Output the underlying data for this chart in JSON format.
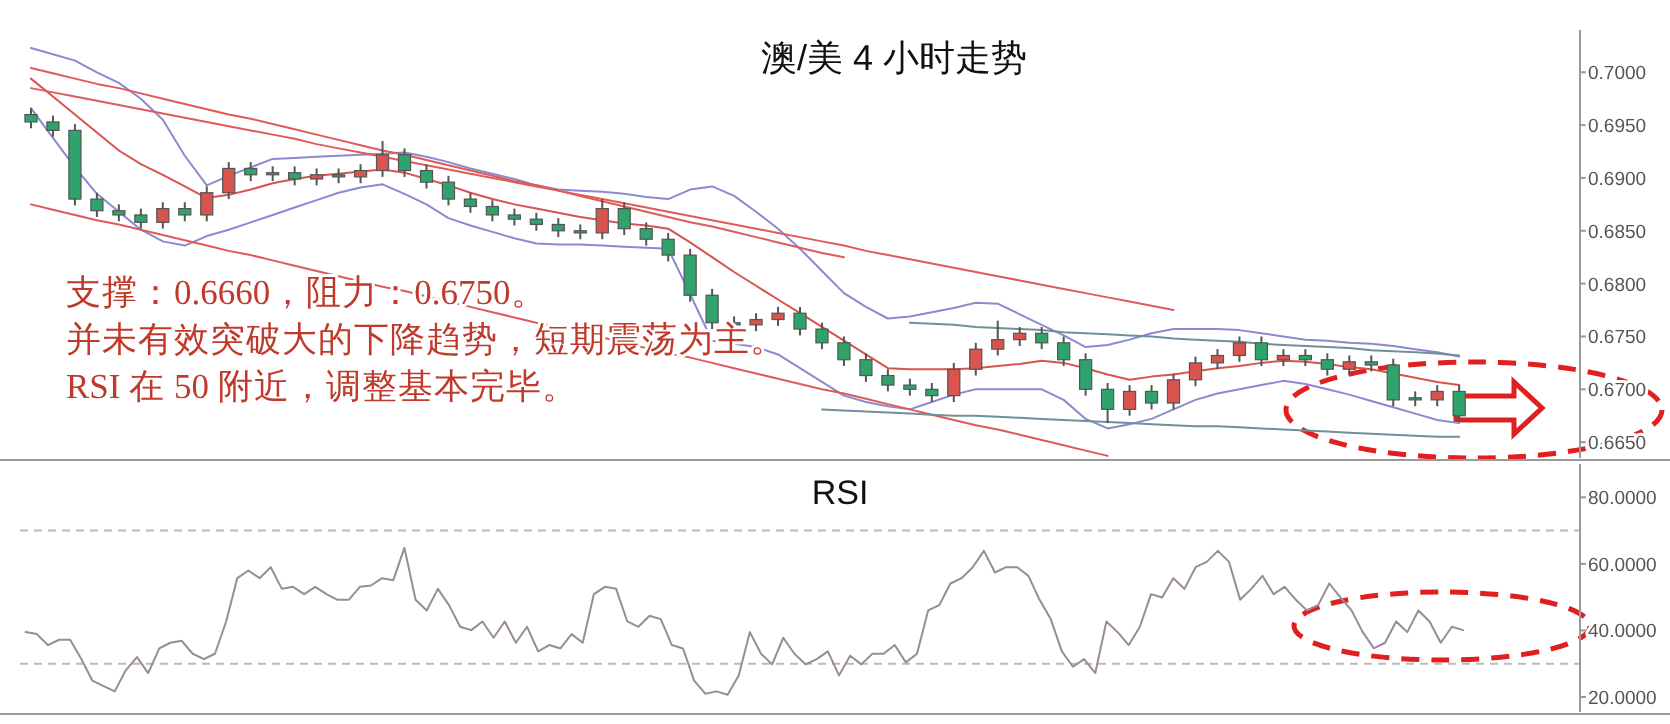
{
  "chart_data": [
    {
      "type": "candlestick",
      "title": "澳/美 4 小时走势",
      "categories": [
        null,
        null,
        null,
        null,
        null,
        null,
        null,
        null,
        null,
        null,
        null,
        null,
        null,
        null,
        null,
        null,
        null,
        null,
        null,
        null,
        null,
        null,
        null,
        null,
        null,
        null,
        null,
        null,
        null,
        null,
        null,
        null,
        null,
        null,
        null,
        null,
        null,
        null,
        null,
        null,
        null,
        null,
        null,
        null,
        null,
        null,
        null,
        null,
        null,
        null,
        null,
        null,
        null,
        null,
        null,
        null,
        null,
        null,
        null,
        null,
        null,
        null,
        null,
        null,
        null,
        null
      ],
      "ohlc": [
        [
          0.696,
          0.6966,
          0.6947,
          0.6953
        ],
        [
          0.6953,
          0.6959,
          0.6939,
          0.6945
        ],
        [
          0.6945,
          0.6951,
          0.6874,
          0.688
        ],
        [
          0.688,
          0.6886,
          0.6863,
          0.6869
        ],
        [
          0.6869,
          0.6875,
          0.6859,
          0.6865
        ],
        [
          0.6865,
          0.6871,
          0.6852,
          0.6858
        ],
        [
          0.6858,
          0.6877,
          0.6852,
          0.6871
        ],
        [
          0.6871,
          0.6877,
          0.6859,
          0.6865
        ],
        [
          0.6865,
          0.6892,
          0.6859,
          0.6886
        ],
        [
          0.6886,
          0.6915,
          0.688,
          0.6909
        ],
        [
          0.6909,
          0.6915,
          0.6897,
          0.6903
        ],
        [
          0.6903,
          0.6911,
          0.6897,
          0.6905
        ],
        [
          0.6905,
          0.6911,
          0.6893,
          0.6899
        ],
        [
          0.6899,
          0.6909,
          0.6893,
          0.6903
        ],
        [
          0.6903,
          0.6909,
          0.6895,
          0.6901
        ],
        [
          0.6901,
          0.6913,
          0.6895,
          0.6907
        ],
        [
          0.6907,
          0.6935,
          0.6901,
          0.6922
        ],
        [
          0.6922,
          0.6928,
          0.6901,
          0.6907
        ],
        [
          0.6907,
          0.6913,
          0.689,
          0.6896
        ],
        [
          0.6896,
          0.6902,
          0.6874,
          0.688
        ],
        [
          0.688,
          0.6886,
          0.6867,
          0.6873
        ],
        [
          0.6873,
          0.6879,
          0.6859,
          0.6865
        ],
        [
          0.6865,
          0.6871,
          0.6855,
          0.6861
        ],
        [
          0.6861,
          0.6867,
          0.685,
          0.6856
        ],
        [
          0.6856,
          0.6862,
          0.6844,
          0.685
        ],
        [
          0.685,
          0.6856,
          0.6842,
          0.6848
        ],
        [
          0.6848,
          0.688,
          0.6842,
          0.6871
        ],
        [
          0.6871,
          0.6877,
          0.6846,
          0.6852
        ],
        [
          0.6852,
          0.6858,
          0.6836,
          0.6842
        ],
        [
          0.6842,
          0.6848,
          0.6821,
          0.6827
        ],
        [
          0.6827,
          0.6833,
          0.6783,
          0.6789
        ],
        [
          0.6789,
          0.6795,
          0.6757,
          0.6763
        ],
        [
          0.6763,
          0.6769,
          0.6755,
          0.6761
        ],
        [
          0.6761,
          0.6772,
          0.6755,
          0.6766
        ],
        [
          0.6766,
          0.6778,
          0.676,
          0.6772
        ],
        [
          0.6772,
          0.6778,
          0.6751,
          0.6757
        ],
        [
          0.6757,
          0.6763,
          0.6738,
          0.6744
        ],
        [
          0.6744,
          0.675,
          0.6722,
          0.6728
        ],
        [
          0.6728,
          0.6734,
          0.6707,
          0.6713
        ],
        [
          0.6713,
          0.6719,
          0.6698,
          0.6704
        ],
        [
          0.6704,
          0.671,
          0.6694,
          0.67
        ],
        [
          0.67,
          0.6706,
          0.6688,
          0.6694
        ],
        [
          0.6694,
          0.6725,
          0.6688,
          0.6719
        ],
        [
          0.6719,
          0.6744,
          0.6713,
          0.6738
        ],
        [
          0.6738,
          0.6765,
          0.6732,
          0.6747
        ],
        [
          0.6747,
          0.6759,
          0.6741,
          0.6753
        ],
        [
          0.6753,
          0.6759,
          0.6738,
          0.6744
        ],
        [
          0.6744,
          0.675,
          0.6722,
          0.6728
        ],
        [
          0.6728,
          0.6734,
          0.6694,
          0.67
        ],
        [
          0.67,
          0.6706,
          0.6668,
          0.6681
        ],
        [
          0.6681,
          0.6704,
          0.6675,
          0.6698
        ],
        [
          0.6698,
          0.6704,
          0.6681,
          0.6687
        ],
        [
          0.6687,
          0.6715,
          0.6681,
          0.6709
        ],
        [
          0.6709,
          0.6731,
          0.6703,
          0.6725
        ],
        [
          0.6725,
          0.6738,
          0.6719,
          0.6732
        ],
        [
          0.6732,
          0.675,
          0.6726,
          0.6744
        ],
        [
          0.6744,
          0.675,
          0.6722,
          0.6728
        ],
        [
          0.6728,
          0.6738,
          0.6722,
          0.6732
        ],
        [
          0.6732,
          0.6738,
          0.6722,
          0.6728
        ],
        [
          0.6728,
          0.6734,
          0.6713,
          0.6719
        ],
        [
          0.6719,
          0.6732,
          0.6713,
          0.6726
        ],
        [
          0.6726,
          0.6732,
          0.6717,
          0.6723
        ],
        [
          0.6723,
          0.6729,
          0.6684,
          0.669
        ],
        [
          0.6692,
          0.6698,
          0.6684,
          0.669
        ],
        [
          0.669,
          0.6704,
          0.6684,
          0.6698
        ],
        [
          0.6698,
          0.6704,
          0.6669,
          0.6675
        ]
      ],
      "colors": [
        "#2ea36b",
        "#2ea36b",
        "#2ea36b",
        "#2ea36b",
        "#2ea36b",
        "#2ea36b",
        "#d9534f",
        "#2ea36b",
        "#d9534f",
        "#d9534f",
        "#2ea36b",
        "#d9534f",
        "#2ea36b",
        "#d9534f",
        "#2ea36b",
        "#d9534f",
        "#d9534f",
        "#2ea36b",
        "#2ea36b",
        "#2ea36b",
        "#2ea36b",
        "#2ea36b",
        "#2ea36b",
        "#2ea36b",
        "#2ea36b",
        "#2ea36b",
        "#d9534f",
        "#2ea36b",
        "#2ea36b",
        "#2ea36b",
        "#2ea36b",
        "#2ea36b",
        "#2ea36b",
        "#d9534f",
        "#d9534f",
        "#2ea36b",
        "#2ea36b",
        "#2ea36b",
        "#2ea36b",
        "#2ea36b",
        "#2ea36b",
        "#2ea36b",
        "#d9534f",
        "#d9534f",
        "#d9534f",
        "#d9534f",
        "#2ea36b",
        "#2ea36b",
        "#2ea36b",
        "#2ea36b",
        "#d9534f",
        "#2ea36b",
        "#d9534f",
        "#d9534f",
        "#d9534f",
        "#d9534f",
        "#2ea36b",
        "#d9534f",
        "#2ea36b",
        "#2ea36b",
        "#d9534f",
        "#2ea36b",
        "#2ea36b",
        "#2ea36b",
        "#d9534f",
        "#2ea36b"
      ],
      "series": [
        {
          "type": "line",
          "color": "#8a8ad0",
          "values": [
            0.7023,
            0.7017,
            0.7011,
            0.7,
            0.699,
            0.6975,
            0.6955,
            0.6921,
            0.6893,
            0.6902,
            0.691,
            0.6918,
            0.6919,
            0.692,
            0.6921,
            0.6922,
            0.6923,
            0.6924,
            0.692,
            0.6915,
            0.6909,
            0.6904,
            0.6899,
            0.6893,
            0.6889,
            0.6888,
            0.6887,
            0.6885,
            0.6882,
            0.688,
            0.6889,
            0.6892,
            0.6883,
            0.6868,
            0.6852,
            0.6833,
            0.6812,
            0.6791,
            0.6778,
            0.6767,
            0.6769,
            0.6773,
            0.6777,
            0.6782,
            0.6781,
            0.6771,
            0.6761,
            0.6751,
            0.674,
            0.6742,
            0.6747,
            0.6753,
            0.6757,
            0.6757,
            0.6757,
            0.6756,
            0.6753,
            0.675,
            0.6747,
            0.6746,
            0.6744,
            0.6743,
            0.6741,
            0.6738,
            0.6735,
            0.6731
          ]
        },
        {
          "type": "line",
          "color": "#8a8ad0",
          "values": [
            0.6966,
            0.6938,
            0.691,
            0.6885,
            0.6868,
            0.6851,
            0.684,
            0.6836,
            0.6845,
            0.6851,
            0.6858,
            0.6865,
            0.6872,
            0.6879,
            0.6886,
            0.6891,
            0.6894,
            0.6885,
            0.6875,
            0.6862,
            0.6855,
            0.6849,
            0.6843,
            0.6838,
            0.6837,
            0.6837,
            0.6836,
            0.6835,
            0.6834,
            0.6833,
            0.679,
            0.6746,
            0.6743,
            0.674,
            0.6733,
            0.672,
            0.6707,
            0.6694,
            0.6688,
            0.6684,
            0.6681,
            0.6688,
            0.6695,
            0.67,
            0.67,
            0.67,
            0.67,
            0.669,
            0.6672,
            0.6663,
            0.6667,
            0.6672,
            0.6681,
            0.669,
            0.6696,
            0.67,
            0.6704,
            0.6708,
            0.6705,
            0.67,
            0.6695,
            0.6689,
            0.6683,
            0.6677,
            0.6671,
            0.6668
          ]
        },
        {
          "type": "line",
          "color": "#d9534f",
          "values": [
            0.6994,
            0.6977,
            0.696,
            0.6943,
            0.6926,
            0.6913,
            0.6903,
            0.6892,
            0.6881,
            0.6884,
            0.6889,
            0.6895,
            0.6899,
            0.6902,
            0.6904,
            0.6906,
            0.6908,
            0.6905,
            0.6899,
            0.6893,
            0.6886,
            0.688,
            0.6875,
            0.6871,
            0.6867,
            0.6863,
            0.686,
            0.6857,
            0.6855,
            0.6852,
            0.6839,
            0.6825,
            0.6811,
            0.6798,
            0.6785,
            0.6772,
            0.6759,
            0.6746,
            0.6733,
            0.672,
            0.6719,
            0.6719,
            0.6719,
            0.672,
            0.6722,
            0.6724,
            0.6727,
            0.6725,
            0.672,
            0.6714,
            0.6709,
            0.6712,
            0.6714,
            0.6717,
            0.672,
            0.6722,
            0.6725,
            0.6727,
            0.6726,
            0.6724,
            0.6721,
            0.6719,
            0.6715,
            0.6711,
            0.6707,
            0.6704
          ]
        },
        {
          "type": "line",
          "color": "#e05a5a",
          "values": [
            0.7004,
            0.6999,
            0.6994,
            0.6989,
            0.6985,
            0.698,
            0.6975,
            0.697,
            0.6965,
            0.696,
            0.6956,
            0.6951,
            0.6946,
            0.6941,
            0.6936,
            0.6931,
            0.6926,
            0.6922,
            0.6917,
            0.6912,
            0.6907,
            0.6902,
            0.6897,
            0.6893,
            0.6888,
            0.6883,
            0.6878,
            0.6873,
            0.6868,
            0.6863,
            0.6858,
            0.6854,
            0.6849,
            0.6844,
            0.6839,
            0.6834,
            0.6829,
            0.6825,
            null,
            null,
            null,
            null,
            null,
            null,
            null,
            null,
            null,
            null,
            null,
            null,
            null,
            null,
            null,
            null,
            null,
            null,
            null,
            null,
            null,
            null,
            null,
            null,
            null,
            null,
            null,
            null
          ]
        },
        {
          "type": "line",
          "color": "#e05a5a",
          "values": [
            0.6985,
            0.6981,
            0.6977,
            0.6973,
            0.6969,
            0.6965,
            0.6961,
            0.6957,
            0.6953,
            0.6949,
            0.6945,
            0.6941,
            0.6937,
            0.6932,
            0.6928,
            0.6924,
            0.692,
            0.6916,
            0.6912,
            0.6908,
            0.6904,
            0.69,
            0.6896,
            0.6892,
            0.6888,
            0.6884,
            0.688,
            0.6876,
            0.6872,
            0.6868,
            0.6864,
            0.686,
            0.6856,
            0.6852,
            0.6848,
            0.6844,
            0.684,
            0.6836,
            0.6831,
            0.6827,
            0.6823,
            0.6819,
            0.6815,
            0.6811,
            0.6807,
            0.6803,
            0.6799,
            0.6795,
            0.6791,
            0.6787,
            0.6783,
            0.6779,
            0.6775,
            null,
            null,
            null,
            null,
            null,
            null,
            null,
            null,
            null,
            null,
            null,
            null,
            null
          ]
        },
        {
          "type": "line",
          "color": "#e05a5a",
          "values": [
            0.6875,
            0.687,
            0.6865,
            0.686,
            0.6856,
            0.6851,
            0.6846,
            0.6841,
            0.6836,
            0.6831,
            0.6827,
            0.6822,
            0.6817,
            0.6812,
            0.6807,
            0.6802,
            0.6797,
            0.6793,
            0.6788,
            0.6783,
            0.6778,
            0.6773,
            0.6768,
            0.6763,
            0.6759,
            0.6754,
            0.6749,
            0.6744,
            0.6739,
            0.6734,
            0.673,
            0.6725,
            0.672,
            0.6715,
            0.671,
            0.6705,
            0.67,
            0.6696,
            0.6691,
            0.6686,
            0.6681,
            0.6676,
            0.6671,
            0.6666,
            0.6662,
            0.6657,
            0.6652,
            0.6647,
            0.6642,
            0.6637,
            null,
            null,
            null,
            null,
            null,
            null,
            null,
            null,
            null,
            null,
            null,
            null,
            null,
            null,
            null,
            null
          ]
        },
        {
          "type": "line",
          "color": "#6f8f9a",
          "values": [
            null,
            null,
            null,
            null,
            null,
            null,
            null,
            null,
            null,
            null,
            null,
            null,
            null,
            null,
            null,
            null,
            null,
            null,
            null,
            null,
            null,
            null,
            null,
            null,
            null,
            null,
            null,
            null,
            null,
            null,
            null,
            null,
            null,
            null,
            null,
            null,
            null,
            null,
            null,
            null,
            0.6763,
            0.6762,
            0.6761,
            0.6759,
            0.6758,
            0.6757,
            0.6756,
            0.6754,
            0.6753,
            0.6752,
            0.6751,
            0.675,
            0.6748,
            0.6747,
            0.6746,
            0.6745,
            0.6743,
            0.6742,
            0.6741,
            0.674,
            0.6739,
            0.6737,
            0.6736,
            0.6735,
            0.6734,
            0.6732
          ]
        },
        {
          "type": "line",
          "color": "#6f8f9a",
          "values": [
            null,
            null,
            null,
            null,
            null,
            null,
            null,
            null,
            null,
            null,
            null,
            null,
            null,
            null,
            null,
            null,
            null,
            null,
            null,
            null,
            null,
            null,
            null,
            null,
            null,
            null,
            null,
            null,
            null,
            null,
            null,
            null,
            null,
            null,
            null,
            null,
            0.6681,
            0.668,
            0.6679,
            0.6678,
            0.6677,
            0.6676,
            0.6675,
            0.6675,
            0.6674,
            0.6673,
            0.6672,
            0.6671,
            0.667,
            0.6669,
            0.6668,
            0.6667,
            0.6666,
            0.6665,
            0.6665,
            0.6664,
            0.6663,
            0.6662,
            0.6661,
            0.666,
            0.6659,
            0.6658,
            0.6657,
            0.6656,
            0.6655,
            0.6655
          ]
        }
      ],
      "ylim": [
        0.6635,
        0.704
      ],
      "yticks": [
        {
          "value": 0.665,
          "label": "0.6650"
        },
        {
          "value": 0.67,
          "label": "0.6700"
        },
        {
          "value": 0.675,
          "label": "0.6750"
        },
        {
          "value": 0.68,
          "label": "0.6800"
        },
        {
          "value": 0.685,
          "label": "0.6850"
        },
        {
          "value": 0.69,
          "label": "0.6900"
        },
        {
          "value": 0.695,
          "label": "0.6950"
        },
        {
          "value": 0.7,
          "label": "0.7000"
        }
      ],
      "tick_labels": "y",
      "annotations": [
        "支撑：0.6660，阻力：0.6750。",
        "并未有效突破大的下降趋势，短期震荡为主。",
        "RSI 在 50 附近，调整基本完毕。"
      ]
    },
    {
      "type": "line",
      "title": "RSI",
      "color": "#9a8a9a",
      "categories": [
        null,
        null,
        null,
        null,
        null,
        null,
        null,
        null,
        null,
        null,
        null,
        null,
        null,
        null,
        null,
        null,
        null,
        null,
        null,
        null,
        null,
        null,
        null,
        null,
        null,
        null,
        null,
        null,
        null,
        null,
        null,
        null,
        null,
        null,
        null,
        null,
        null,
        null,
        null,
        null,
        null,
        null,
        null,
        null,
        null,
        null,
        null,
        null,
        null,
        null,
        null,
        null,
        null,
        null,
        null,
        null,
        null,
        null,
        null,
        null,
        null,
        null,
        null,
        null,
        null,
        null,
        null,
        null,
        null,
        null,
        null,
        null,
        null,
        null,
        null,
        null,
        null,
        null,
        null,
        null,
        null,
        null,
        null,
        null,
        null,
        null,
        null,
        null,
        null,
        null,
        null,
        null,
        null,
        null,
        null,
        null,
        null,
        null,
        null,
        null,
        null,
        null,
        null,
        null,
        null,
        null,
        null,
        null,
        null,
        null,
        null,
        null,
        null,
        null,
        null,
        null,
        null,
        null,
        null,
        null,
        null,
        null,
        null,
        null,
        null,
        null,
        null,
        null,
        null,
        null,
        null,
        null,
        null,
        null,
        null,
        null,
        null,
        null,
        null,
        null
      ],
      "values": [
        39.5,
        38.9,
        35.6,
        37.2,
        37.2,
        31.4,
        24.9,
        23.3,
        21.7,
        28.1,
        32.0,
        27.2,
        34.6,
        36.3,
        36.9,
        33.0,
        31.4,
        33.0,
        42.7,
        55.7,
        58.0,
        55.7,
        59.0,
        52.5,
        53.1,
        50.9,
        53.1,
        50.9,
        49.2,
        49.2,
        53.1,
        53.5,
        55.7,
        55.1,
        64.8,
        49.2,
        46.0,
        52.5,
        47.6,
        41.1,
        40.1,
        42.7,
        37.8,
        42.7,
        36.3,
        41.1,
        33.7,
        35.6,
        34.6,
        38.9,
        36.3,
        50.9,
        53.1,
        52.5,
        42.7,
        41.1,
        44.4,
        43.4,
        35.6,
        34.6,
        24.9,
        21.0,
        21.7,
        20.7,
        26.5,
        39.5,
        33.0,
        29.8,
        37.8,
        33.0,
        29.8,
        31.4,
        33.7,
        26.5,
        32.4,
        29.8,
        33.0,
        33.0,
        35.6,
        30.4,
        33.0,
        46.0,
        47.6,
        54.1,
        55.7,
        59.0,
        63.9,
        57.4,
        59.0,
        59.0,
        56.4,
        49.2,
        43.4,
        33.7,
        29.1,
        31.4,
        27.2,
        42.7,
        39.5,
        35.6,
        41.1,
        50.9,
        49.9,
        55.7,
        52.5,
        59.0,
        60.6,
        63.9,
        60.6,
        49.2,
        52.5,
        56.4,
        50.9,
        53.1,
        49.2,
        46.0,
        47.6,
        54.1,
        49.9,
        46.0,
        39.5,
        34.6,
        36.3,
        42.7,
        39.5,
        46.0,
        42.7,
        36.3,
        41.1,
        40.1,
        null,
        null,
        null,
        null,
        null,
        null,
        null,
        null,
        null,
        null
      ],
      "ylim": [
        15.5,
        90
      ],
      "yticks": [
        {
          "value": 20,
          "label": "20.0000"
        },
        {
          "value": 40,
          "label": "40.0000"
        },
        {
          "value": 60,
          "label": "60.0000"
        },
        {
          "value": 80,
          "label": "80.0000"
        }
      ],
      "tick_labels": "y",
      "ref_lines": [
        {
          "axis": "y",
          "value": 70,
          "color": "#bbbbbb",
          "line_style": "dashed"
        },
        {
          "axis": "y",
          "value": 30,
          "color": "#bbbbbb",
          "line_style": "dashed"
        }
      ]
    }
  ]
}
